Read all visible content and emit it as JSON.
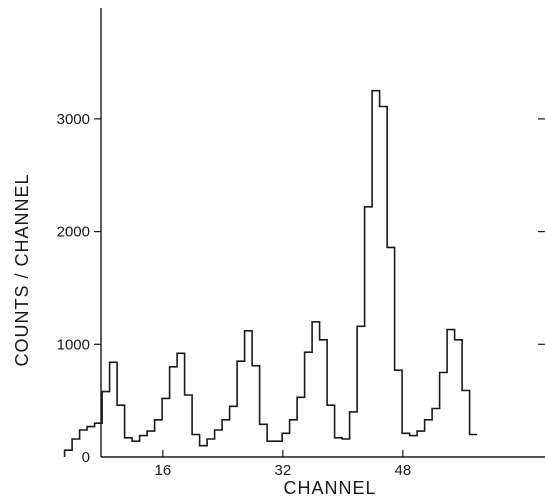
{
  "chart_data": {
    "type": "line",
    "style": "step",
    "title": "",
    "xlabel": "CHANNEL",
    "ylabel": "COUNTS / CHANNEL",
    "xlim": [
      0,
      58
    ],
    "ylim": [
      0,
      3700
    ],
    "x_ticks": [
      16,
      32,
      48
    ],
    "y_ticks": [
      0,
      1000,
      2000,
      3000
    ],
    "grid": false,
    "series": [
      {
        "x": [
          3,
          4,
          5,
          6,
          7,
          8,
          9,
          10,
          11,
          12,
          13,
          14,
          15,
          16,
          17,
          18,
          19,
          20,
          21,
          22,
          23,
          24,
          25,
          26,
          27,
          28,
          29,
          30,
          31,
          32,
          33,
          34,
          35,
          36,
          37,
          38,
          39,
          40,
          41,
          42,
          43,
          44,
          45,
          46,
          47,
          48,
          49,
          50,
          51,
          52,
          53,
          54,
          55,
          56,
          57
        ],
        "values": [
          60,
          160,
          240,
          270,
          300,
          580,
          840,
          460,
          170,
          140,
          190,
          230,
          330,
          520,
          800,
          920,
          550,
          200,
          100,
          160,
          240,
          330,
          450,
          850,
          1120,
          810,
          290,
          140,
          140,
          210,
          330,
          530,
          930,
          1200,
          1040,
          460,
          170,
          160,
          400,
          1160,
          2220,
          3250,
          3110,
          1860,
          770,
          210,
          190,
          230,
          330,
          430,
          750,
          1130,
          1040,
          590,
          200
        ]
      }
    ]
  }
}
